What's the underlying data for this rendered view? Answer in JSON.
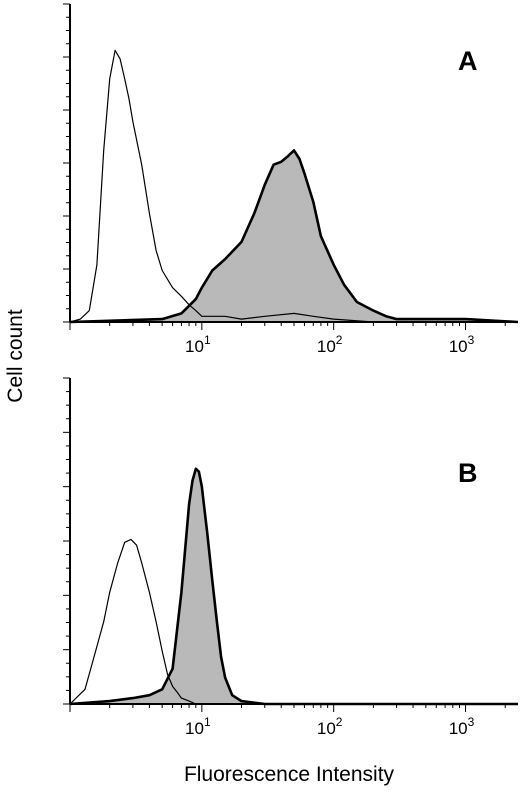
{
  "chart_data": {
    "type": "area",
    "xlabel": "Fluorescence Intensity",
    "ylabel": "Cell count",
    "x_scale": "log",
    "x_tick_labels": [
      {
        "base": "10",
        "exp": "1"
      },
      {
        "base": "10",
        "exp": "2"
      },
      {
        "base": "10",
        "exp": "3"
      }
    ],
    "colors": {
      "stained_fill": "#b9b9b9",
      "line": "#000000"
    },
    "panels": [
      {
        "label": "A",
        "xlim": [
          1,
          2500
        ],
        "ylim": [
          0,
          100
        ],
        "series": [
          {
            "style": "thin-outline",
            "fill": false,
            "x": [
              1.0,
              1.2,
              1.4,
              1.6,
              1.8,
              2.0,
              2.2,
              2.4,
              2.6,
              2.8,
              3.0,
              3.5,
              4.0,
              4.5,
              5.0,
              6.0,
              7.0,
              8.0,
              9.0,
              10,
              12,
              15,
              20,
              30,
              50,
              70,
              100,
              200
            ],
            "y": [
              0,
              1,
              4,
              20,
              60,
              85,
              95,
              92,
              85,
              78,
              70,
              55,
              38,
              25,
              18,
              12,
              9,
              6,
              4,
              2,
              2,
              2,
              1,
              2,
              3,
              2,
              1,
              0
            ]
          },
          {
            "style": "thick-outline",
            "fill": true,
            "x": [
              1.0,
              5.0,
              7.0,
              9.0,
              10,
              12,
              15,
              20,
              25,
              30,
              35,
              40,
              45,
              50,
              55,
              60,
              70,
              80,
              100,
              120,
              150,
              200,
              250,
              300,
              500,
              1000,
              2500
            ],
            "y": [
              0,
              1,
              3,
              8,
              12,
              18,
              22,
              28,
              38,
              48,
              55,
              56,
              58,
              60,
              57,
              52,
              42,
              30,
              20,
              13,
              7,
              4,
              2,
              1,
              1,
              1,
              0
            ]
          }
        ]
      },
      {
        "label": "B",
        "xlim": [
          1,
          2500
        ],
        "ylim": [
          0,
          100
        ],
        "series": [
          {
            "style": "thin-outline",
            "fill": false,
            "x": [
              1.0,
              1.3,
              1.5,
              1.8,
              2.0,
              2.3,
              2.6,
              2.9,
              3.2,
              3.5,
              4.0,
              4.5,
              5.0,
              5.5,
              6.0,
              6.5,
              7.0,
              8.0,
              9.0,
              10
            ],
            "y": [
              0,
              5,
              15,
              28,
              38,
              48,
              55,
              56,
              54,
              48,
              38,
              28,
              18,
              10,
              6,
              4,
              2,
              1,
              0,
              0
            ]
          },
          {
            "style": "thick-outline",
            "fill": true,
            "x": [
              1.0,
              2.0,
              3.0,
              4.0,
              5.0,
              6.0,
              7.0,
              8.0,
              8.5,
              9.0,
              9.5,
              10,
              11,
              12,
              13,
              14,
              15,
              17,
              20,
              30,
              100,
              2500
            ],
            "y": [
              0,
              1,
              2,
              3,
              5,
              12,
              38,
              68,
              76,
              80,
              79,
              74,
              58,
              42,
              28,
              16,
              9,
              3,
              1,
              0,
              0,
              0
            ]
          }
        ]
      }
    ]
  }
}
